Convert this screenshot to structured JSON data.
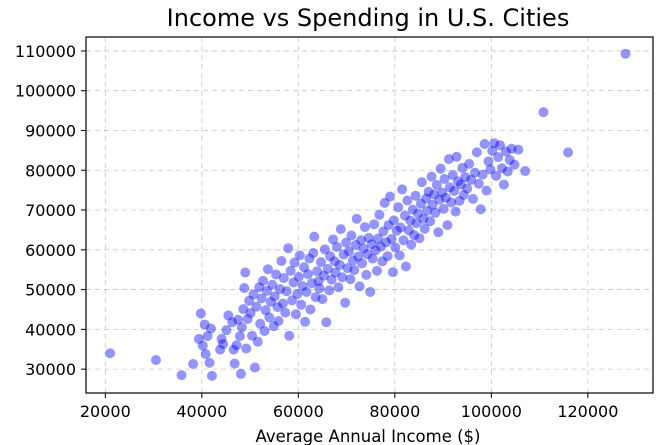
{
  "chart_data": {
    "type": "scatter",
    "title": "Income vs Spending in U.S. Cities",
    "xlabel": "Average Annual Income ($)",
    "ylabel": "",
    "xlim": [
      16000,
      133500
    ],
    "ylim": [
      24000,
      113500
    ],
    "x_ticks": [
      20000,
      40000,
      60000,
      80000,
      100000,
      120000
    ],
    "y_ticks": [
      30000,
      40000,
      50000,
      60000,
      70000,
      80000,
      90000,
      100000,
      110000
    ],
    "grid": true,
    "point_color": "#0000ff",
    "series": [
      {
        "points": [
          [
            21000,
            34000
          ],
          [
            30500,
            32300
          ],
          [
            35800,
            28500
          ],
          [
            38200,
            31300
          ],
          [
            39400,
            37600
          ],
          [
            39800,
            44000
          ],
          [
            40200,
            35900
          ],
          [
            40600,
            41200
          ],
          [
            40800,
            33800
          ],
          [
            41200,
            38300
          ],
          [
            41600,
            31600
          ],
          [
            41900,
            40200
          ],
          [
            42100,
            28300
          ],
          [
            43800,
            34900
          ],
          [
            44100,
            37600
          ],
          [
            44400,
            36300
          ],
          [
            45100,
            39800
          ],
          [
            45500,
            43500
          ],
          [
            46300,
            41800
          ],
          [
            46600,
            34900
          ],
          [
            46800,
            31400
          ],
          [
            47200,
            36000
          ],
          [
            47500,
            42400
          ],
          [
            47900,
            38300
          ],
          [
            48100,
            28800
          ],
          [
            48300,
            40500
          ],
          [
            48600,
            45100
          ],
          [
            48800,
            50400
          ],
          [
            49000,
            54300
          ],
          [
            49200,
            35200
          ],
          [
            49500,
            42600
          ],
          [
            49800,
            47200
          ],
          [
            50100,
            44100
          ],
          [
            50400,
            38400
          ],
          [
            50700,
            48800
          ],
          [
            51000,
            30400
          ],
          [
            51300,
            45700
          ],
          [
            51600,
            36900
          ],
          [
            51900,
            50600
          ],
          [
            52100,
            41400
          ],
          [
            52400,
            47800
          ],
          [
            52700,
            52200
          ],
          [
            53000,
            39600
          ],
          [
            53200,
            44800
          ],
          [
            53500,
            49700
          ],
          [
            53700,
            55100
          ],
          [
            54000,
            43000
          ],
          [
            54300,
            46900
          ],
          [
            54600,
            51200
          ],
          [
            54900,
            40800
          ],
          [
            55100,
            48300
          ],
          [
            55400,
            53800
          ],
          [
            55700,
            45600
          ],
          [
            55900,
            42100
          ],
          [
            56200,
            50100
          ],
          [
            56500,
            57200
          ],
          [
            56800,
            46500
          ],
          [
            57000,
            52900
          ],
          [
            57300,
            44200
          ],
          [
            57600,
            49600
          ],
          [
            57900,
            60400
          ],
          [
            58100,
            38400
          ],
          [
            58400,
            54700
          ],
          [
            58700,
            47300
          ],
          [
            59000,
            51800
          ],
          [
            59200,
            56800
          ],
          [
            59500,
            43800
          ],
          [
            59800,
            48900
          ],
          [
            60100,
            53200
          ],
          [
            60300,
            58600
          ],
          [
            60600,
            46200
          ],
          [
            60900,
            50900
          ],
          [
            61200,
            55600
          ],
          [
            61400,
            41900
          ],
          [
            61700,
            49400
          ],
          [
            62000,
            53900
          ],
          [
            62300,
            57800
          ],
          [
            62500,
            45000
          ],
          [
            62800,
            51600
          ],
          [
            63100,
            59200
          ],
          [
            63300,
            63300
          ],
          [
            63600,
            48100
          ],
          [
            63900,
            54600
          ],
          [
            64200,
            52100
          ],
          [
            64400,
            50300
          ],
          [
            64700,
            56900
          ],
          [
            65000,
            47600
          ],
          [
            65300,
            53500
          ],
          [
            65500,
            60100
          ],
          [
            65800,
            41800
          ],
          [
            66100,
            55200
          ],
          [
            66400,
            49800
          ],
          [
            66600,
            58400
          ],
          [
            66900,
            52500
          ],
          [
            67200,
            62600
          ],
          [
            67500,
            57100
          ],
          [
            67700,
            54300
          ],
          [
            68000,
            60700
          ],
          [
            68300,
            50600
          ],
          [
            68600,
            56200
          ],
          [
            68800,
            65200
          ],
          [
            69100,
            53100
          ],
          [
            69400,
            58800
          ],
          [
            69700,
            46700
          ],
          [
            69900,
            61800
          ],
          [
            70200,
            55400
          ],
          [
            70500,
            59600
          ],
          [
            70800,
            52600
          ],
          [
            71000,
            63600
          ],
          [
            71300,
            57300
          ],
          [
            71600,
            54900
          ],
          [
            71900,
            61200
          ],
          [
            72100,
            67800
          ],
          [
            72400,
            58300
          ],
          [
            72700,
            50800
          ],
          [
            73000,
            62400
          ],
          [
            73200,
            56600
          ],
          [
            73500,
            60300
          ],
          [
            73800,
            65700
          ],
          [
            74100,
            53700
          ],
          [
            74300,
            58900
          ],
          [
            74600,
            63000
          ],
          [
            74900,
            49400
          ],
          [
            75200,
            61400
          ],
          [
            75400,
            57800
          ],
          [
            75700,
            66400
          ],
          [
            76000,
            59900
          ],
          [
            76300,
            54700
          ],
          [
            76500,
            62800
          ],
          [
            76800,
            68800
          ],
          [
            77100,
            60800
          ],
          [
            77400,
            57100
          ],
          [
            77600,
            64600
          ],
          [
            77900,
            71800
          ],
          [
            78200,
            61900
          ],
          [
            78500,
            58400
          ],
          [
            78700,
            66200
          ],
          [
            79000,
            73400
          ],
          [
            79300,
            62700
          ],
          [
            79600,
            54400
          ],
          [
            79800,
            67400
          ],
          [
            80100,
            60600
          ],
          [
            80400,
            64800
          ],
          [
            80700,
            70700
          ],
          [
            81000,
            58600
          ],
          [
            81200,
            65600
          ],
          [
            81500,
            75200
          ],
          [
            81800,
            62400
          ],
          [
            82100,
            68600
          ],
          [
            82300,
            55800
          ],
          [
            82600,
            72400
          ],
          [
            82900,
            64900
          ],
          [
            83200,
            67300
          ],
          [
            83400,
            61300
          ],
          [
            83700,
            70100
          ],
          [
            84000,
            63700
          ],
          [
            84300,
            73600
          ],
          [
            84500,
            66700
          ],
          [
            84800,
            69100
          ],
          [
            85100,
            62900
          ],
          [
            85400,
            71600
          ],
          [
            85600,
            77000
          ],
          [
            85900,
            67800
          ],
          [
            86200,
            65300
          ],
          [
            86500,
            72900
          ],
          [
            86700,
            69800
          ],
          [
            87000,
            74600
          ],
          [
            87300,
            67200
          ],
          [
            87600,
            78400
          ],
          [
            87800,
            71300
          ],
          [
            88100,
            73900
          ],
          [
            88400,
            69300
          ],
          [
            88700,
            76300
          ],
          [
            89000,
            64400
          ],
          [
            89200,
            72600
          ],
          [
            89500,
            80400
          ],
          [
            89800,
            74400
          ],
          [
            90100,
            70300
          ],
          [
            90300,
            77800
          ],
          [
            90600,
            73100
          ],
          [
            90900,
            66200
          ],
          [
            91200,
            82800
          ],
          [
            91400,
            75700
          ],
          [
            91700,
            71900
          ],
          [
            92000,
            78800
          ],
          [
            92300,
            74800
          ],
          [
            92600,
            69600
          ],
          [
            92800,
            83400
          ],
          [
            93100,
            77200
          ],
          [
            93400,
            72300
          ],
          [
            93700,
            76400
          ],
          [
            94000,
            80600
          ],
          [
            94300,
            73800
          ],
          [
            94600,
            78300
          ],
          [
            95000,
            75400
          ],
          [
            95400,
            81600
          ],
          [
            95800,
            77600
          ],
          [
            96200,
            72800
          ],
          [
            96600,
            79400
          ],
          [
            97000,
            84500
          ],
          [
            97400,
            76600
          ],
          [
            97800,
            70200
          ],
          [
            98200,
            78900
          ],
          [
            98600,
            86600
          ],
          [
            99000,
            74900
          ],
          [
            99400,
            82200
          ],
          [
            99800,
            80200
          ],
          [
            100200,
            84900
          ],
          [
            100600,
            86800
          ],
          [
            101000,
            78600
          ],
          [
            101400,
            83300
          ],
          [
            101800,
            86300
          ],
          [
            102200,
            80500
          ],
          [
            102600,
            76400
          ],
          [
            103000,
            84700
          ],
          [
            103400,
            79700
          ],
          [
            103800,
            82600
          ],
          [
            104200,
            85400
          ],
          [
            104800,
            81400
          ],
          [
            105600,
            85200
          ],
          [
            107000,
            79800
          ],
          [
            110800,
            94600
          ],
          [
            115900,
            84500
          ],
          [
            127800,
            109300
          ]
        ]
      }
    ]
  }
}
